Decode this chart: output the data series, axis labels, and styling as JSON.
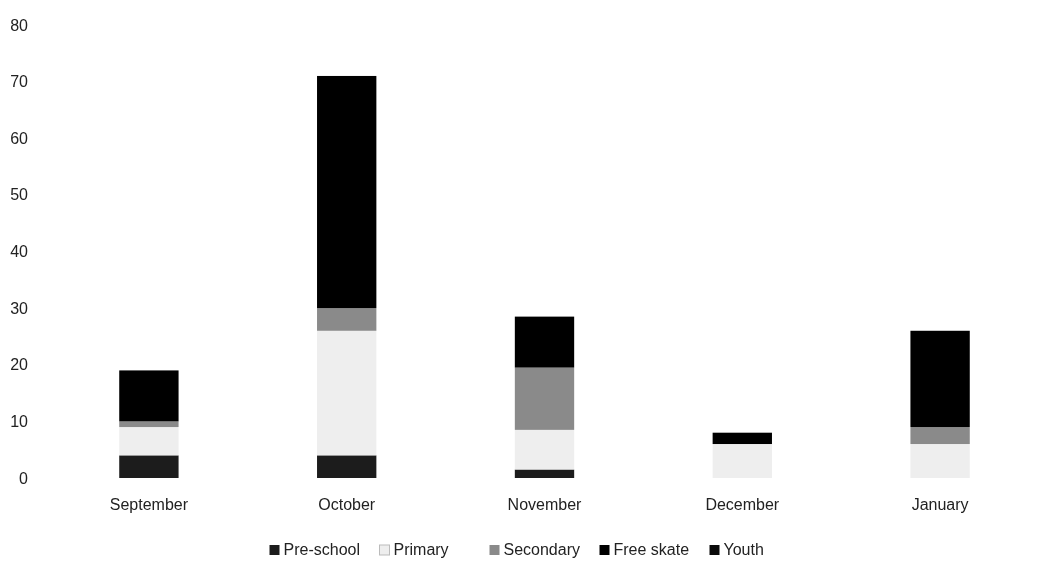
{
  "chart_data": {
    "type": "bar",
    "stacked": true,
    "categories": [
      "September",
      "October",
      "November",
      "December",
      "January"
    ],
    "series": [
      {
        "name": "Pre-school",
        "color": "#1c1c1c",
        "values": [
          4,
          4,
          1.5,
          0,
          0
        ]
      },
      {
        "name": "Primary",
        "color": "#eeeeee",
        "values": [
          5,
          22,
          7,
          6,
          6
        ]
      },
      {
        "name": "Secondary",
        "color": "#8a8a8a",
        "values": [
          1,
          4,
          11,
          0,
          3
        ]
      },
      {
        "name": "Free skate",
        "color": "#000000",
        "values": [
          9,
          41,
          9,
          2,
          17
        ]
      },
      {
        "name": "Youth",
        "color": "#0a0a0a",
        "values": [
          0,
          0,
          0,
          0,
          0
        ]
      }
    ],
    "ylim": [
      0,
      80
    ],
    "yticks": [
      0,
      10,
      20,
      30,
      40,
      50,
      60,
      70,
      80
    ],
    "grid": false,
    "legend": "bottom"
  }
}
